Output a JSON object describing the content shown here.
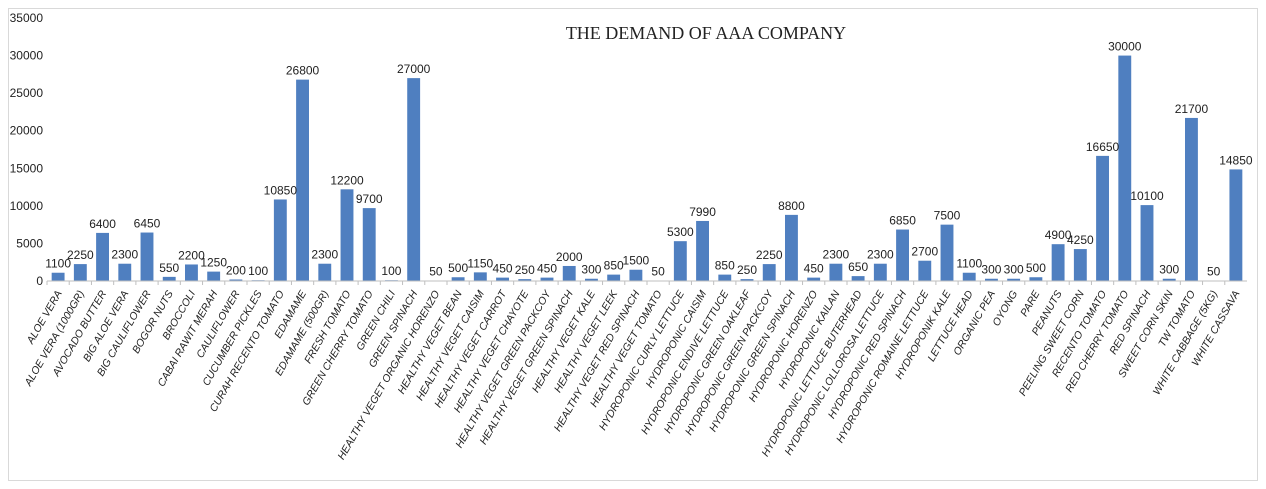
{
  "chart_data": {
    "type": "bar",
    "title": "THE DEMAND OF AAA COMPANY",
    "xlabel": "",
    "ylabel": "",
    "ylim": [
      0,
      35000
    ],
    "yticks": [
      0,
      5000,
      10000,
      15000,
      20000,
      25000,
      30000,
      35000
    ],
    "grid": false,
    "legend": "none",
    "bar_color": "#4f7fc0",
    "categories": [
      "ALOE VERA",
      "ALOE VERA (1000GR)",
      "AVOCADO BUTTER",
      "BIG ALOE VERA",
      "BIG CAULIFLOWER",
      "BOGOR NUTS",
      "BROCCOLI",
      "CABAI RAWIT MERAH",
      "CAULIFLOWER",
      "CUCUMBER PICKLES",
      "CURAH RECENTO TOMATO",
      "EDAMAME",
      "EDAMAME (500GR)",
      "FRESH TOMATO",
      "GREEN CHERRY TOMATO",
      "GREEN CHILI",
      "GREEN SPINACH",
      "HEALTHY VEGET ORGANIC HORENZO",
      "HEALTHY VEGET BEAN",
      "HEALTHY VEGET CAISIM",
      "HEALTHY VEGET CARROT",
      "HEALTHY VEGET CHAYOTE",
      "HEALTHY VEGET GREEN PACKCOY",
      "HEALTHY VEGET GREEN SPINACH",
      "HEALTHY VEGET KALE",
      "HEALTHY VEGET LEEK",
      "HEALTHY VEGET RED SPINACH",
      "HEALTHY VEGET TOMATO",
      "HYDROPONIC CURLY LETTUCE",
      "HYDROPONIC CAISIM",
      "HYDROPONIC ENDIVE LETTUCE",
      "HYDROPONIC GREEN OAKLEAF",
      "HYDROPONIC GREEN PACKCOY",
      "HYDROPONIC GREEN SPINACH",
      "HYDROPONIC HORENZO",
      "HYDROPONIC KAILAN",
      "HYDROPONIC LETTUCE BUTERHEAD",
      "HYDROPONIC LOLLOROSA LETTUCE",
      "HYDROPONIC RED SPINACH",
      "HYDROPONIC ROMAINE LETTUCE",
      "HYDROPONIK KALE",
      "LETTUCE HEAD",
      "ORGANIC PEA",
      "OYONG",
      "PARE",
      "PEANUTS",
      "PEELING SWEET CORN",
      "RECENTO TOMATO",
      "RED CHERRY TOMATO",
      "RED SPINACH",
      "SWEET CORN SKIN",
      "TW TOMATO",
      "WHITE CABBAGE (5KG)",
      "WHITE CASSAVA"
    ],
    "values": [
      1100,
      2250,
      6400,
      2300,
      6450,
      550,
      2200,
      1250,
      200,
      100,
      10850,
      26800,
      2300,
      12200,
      9700,
      100,
      27000,
      50,
      500,
      1150,
      450,
      250,
      450,
      2000,
      300,
      850,
      1500,
      50,
      5300,
      7990,
      850,
      250,
      2250,
      8800,
      450,
      2300,
      650,
      2300,
      6850,
      2700,
      7500,
      1100,
      300,
      300,
      500,
      4900,
      4250,
      16650,
      30000,
      10100,
      300,
      21700,
      50,
      14850
    ],
    "data_labels": [
      "1100",
      "2250",
      "6400",
      "2300",
      "6450",
      "550",
      "2200",
      "1250",
      "200",
      "100",
      "10850",
      "26800",
      "2300",
      "12200",
      "9700",
      "100",
      "27000",
      "50",
      "500",
      "1150",
      "450",
      "250",
      "450",
      "2000",
      "300",
      "850",
      "1500",
      "50",
      "5300",
      "7990",
      "850",
      "250",
      "2250",
      "8800",
      "450",
      "2300",
      "650",
      "2300",
      "6850",
      "2700",
      "7500",
      "1100",
      "300",
      "300",
      "500",
      "4900",
      "4250",
      "16650",
      "30000",
      "10100",
      "300",
      "21700",
      "50",
      "14850"
    ]
  }
}
